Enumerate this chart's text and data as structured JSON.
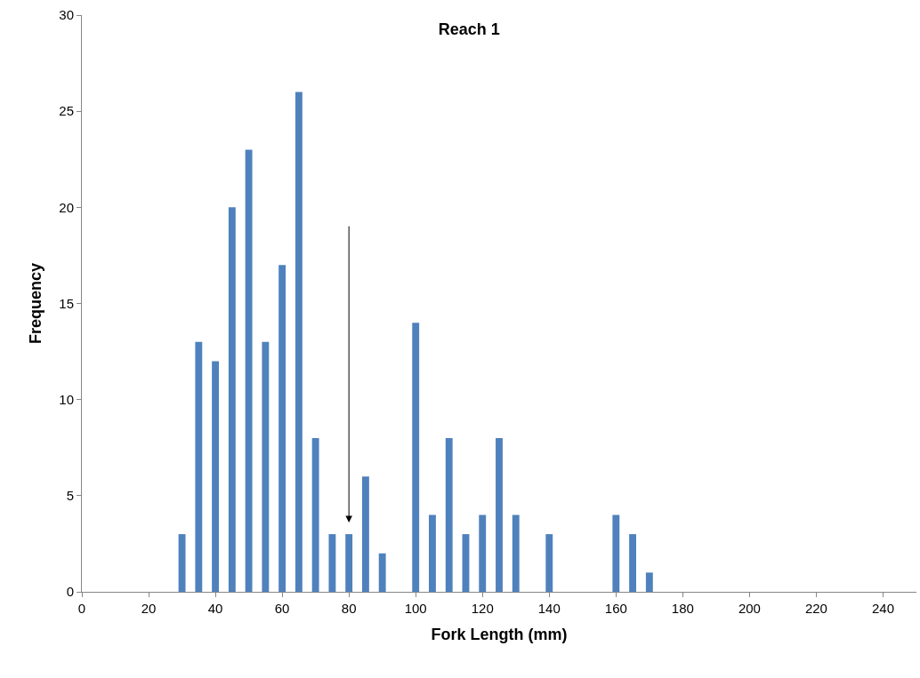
{
  "chart_data": {
    "type": "bar",
    "title": "Reach 1",
    "xlabel": "Fork Length (mm)",
    "ylabel": "Frequency",
    "x": [
      30,
      35,
      40,
      45,
      50,
      55,
      60,
      65,
      70,
      75,
      80,
      85,
      90,
      100,
      105,
      110,
      115,
      120,
      125,
      130,
      140,
      160,
      165,
      170
    ],
    "values": [
      3,
      13,
      12,
      20,
      23,
      13,
      17,
      26,
      8,
      3,
      3,
      6,
      2,
      14,
      4,
      8,
      3,
      4,
      8,
      4,
      3,
      4,
      3,
      1
    ],
    "color": "#4f81bd",
    "xlim": [
      0,
      250
    ],
    "xticks": [
      0,
      20,
      40,
      60,
      80,
      100,
      120,
      140,
      160,
      180,
      200,
      220,
      240
    ],
    "ylim": [
      0,
      30
    ],
    "yticks": [
      0,
      5,
      10,
      15,
      20,
      25,
      30
    ]
  }
}
